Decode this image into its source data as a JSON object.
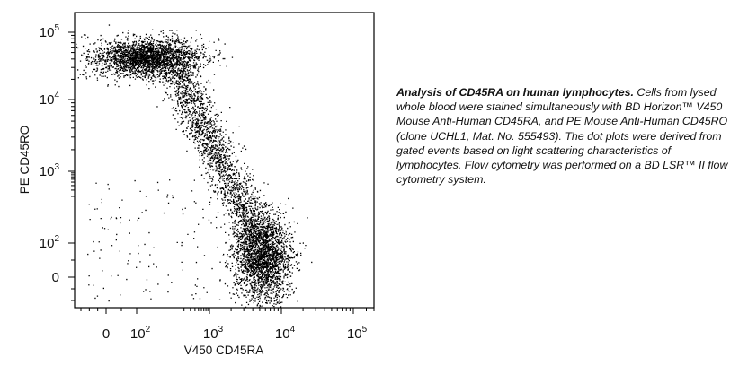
{
  "chart_data": {
    "type": "scatter",
    "title": "",
    "xlabel": "V450 CD45RA",
    "ylabel": "PE CD45RO",
    "x_scale": "biexponential (log above ~10^2, linear near 0)",
    "y_scale": "biexponential (log above ~10^2, linear near 0)",
    "xlim": [
      -150,
      300000
    ],
    "ylim": [
      -100,
      130000
    ],
    "x_ticks": [
      {
        "base": "0",
        "exp": ""
      },
      {
        "base": "10",
        "exp": "2"
      },
      {
        "base": "10",
        "exp": "3"
      },
      {
        "base": "10",
        "exp": "4"
      },
      {
        "base": "10",
        "exp": "5"
      }
    ],
    "y_ticks": [
      {
        "base": "0",
        "exp": ""
      },
      {
        "base": "10",
        "exp": "2"
      },
      {
        "base": "10",
        "exp": "3"
      },
      {
        "base": "10",
        "exp": "4"
      },
      {
        "base": "10",
        "exp": "5"
      }
    ],
    "grid": false,
    "legend": "none",
    "point_color": "#000000",
    "series": [
      {
        "populations": [
          {
            "center_x": 250,
            "center_y": 30000,
            "approx_events": 2600
          },
          {
            "center_x": 1500,
            "center_y": 3000,
            "approx_events": 1900
          },
          {
            "center_x": 5000,
            "center_y": 60,
            "approx_events": 2300
          },
          {
            "center_x": 300,
            "center_y": 100,
            "approx_events": 120
          }
        ]
      }
    ]
  },
  "caption": {
    "title": "Analysis of CD45RA on human lymphocytes.",
    "body": " Cells from lysed whole blood were stained simultaneously with BD Horizon™ V450 Mouse Anti-Human CD45RA, and PE Mouse Anti-Human CD45RO (clone UCHL1, Mat. No. 555493). The dot plots were derived from gated events based on light scattering characteristics of lymphocytes. Flow cytometry was performed on a BD LSR™ II flow cytometry system."
  }
}
